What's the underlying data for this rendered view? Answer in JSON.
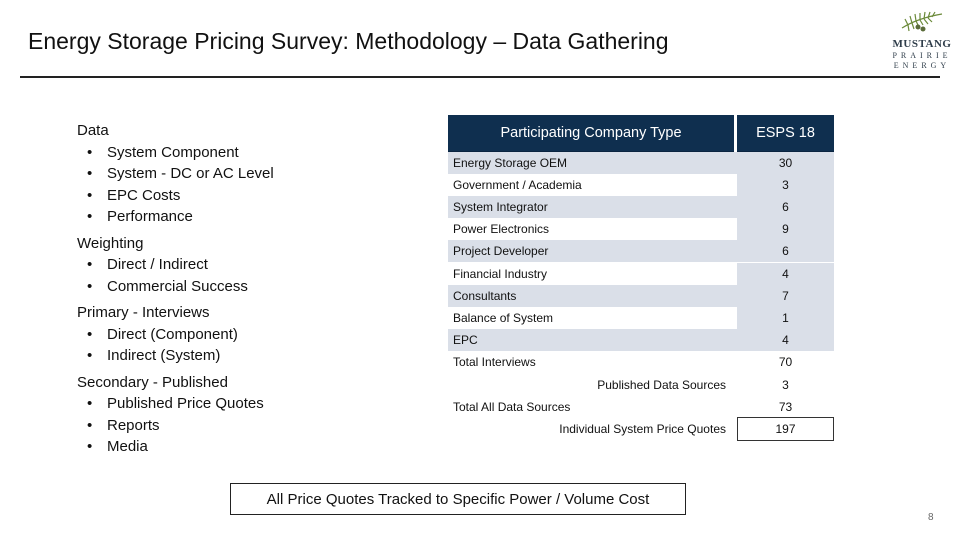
{
  "title": "Energy Storage Pricing Survey: Methodology – Data Gathering",
  "logo": {
    "line1": "MUSTANG",
    "line2": "PRAIRIE",
    "line3": "ENERGY"
  },
  "left": {
    "data": {
      "heading": "Data",
      "items": [
        "System Component",
        "System - DC or AC Level",
        "EPC Costs",
        "Performance"
      ]
    },
    "weighting": {
      "heading": "Weighting",
      "items": [
        "Direct / Indirect",
        "Commercial Success"
      ]
    },
    "primary": {
      "heading": "Primary - Interviews",
      "items": [
        "Direct (Component)",
        "Indirect (System)"
      ]
    },
    "secondary": {
      "heading": "Secondary - Published",
      "items": [
        "Published Price Quotes",
        "Reports",
        "Media"
      ]
    }
  },
  "table": {
    "headers": {
      "type": "Participating Company Type",
      "esps": "ESPS 18"
    },
    "rows": [
      {
        "label": "Energy Storage OEM",
        "value": "30"
      },
      {
        "label": "Government / Academia",
        "value": "3"
      },
      {
        "label": "System Integrator",
        "value": "6"
      },
      {
        "label": "Power Electronics",
        "value": "9"
      },
      {
        "label": "Project Developer",
        "value": "6"
      },
      {
        "label": "Financial Industry",
        "value": "4"
      },
      {
        "label": "Consultants",
        "value": "7"
      },
      {
        "label": "Balance of System",
        "value": "1"
      },
      {
        "label": "EPC",
        "value": "4"
      }
    ],
    "total_interviews": {
      "label": "Total Interviews",
      "value": "70"
    },
    "published_sources": {
      "label": "Published Data Sources",
      "value": "3"
    },
    "total_all": {
      "label": "Total All Data Sources",
      "value": "73"
    },
    "individual_quotes": {
      "label": "Individual System Price Quotes",
      "value": "197"
    }
  },
  "footer_box": "All Price Quotes Tracked to Specific Power / Volume Cost",
  "page_number": "8"
}
